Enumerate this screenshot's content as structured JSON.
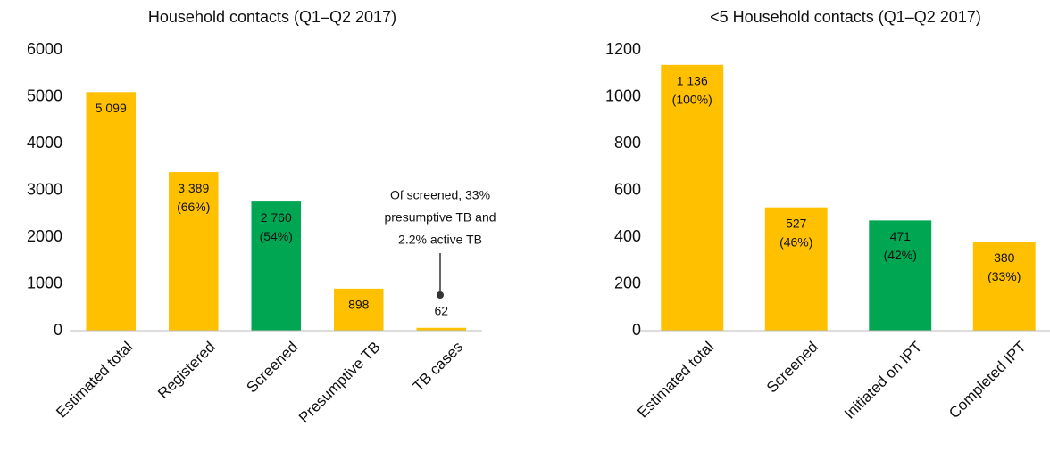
{
  "chart_data": [
    {
      "type": "bar",
      "title": "Household contacts (Q1–Q2 2017)",
      "categories": [
        "Estimated total",
        "Registered",
        "Screened",
        "Presumptive TB",
        "TB cases"
      ],
      "values": [
        5099,
        3389,
        2760,
        898,
        62
      ],
      "value_labels": [
        "5 099",
        "3 389",
        "2 760",
        "898",
        "62"
      ],
      "percent_labels": [
        null,
        "(66%)",
        "(54%)",
        null,
        null
      ],
      "colors": [
        "#FFC000",
        "#FFC000",
        "#00A651",
        "#FFC000",
        "#FFC000"
      ],
      "ylim": [
        0,
        6000
      ],
      "yticks": [
        0,
        1000,
        2000,
        3000,
        4000,
        5000,
        6000
      ],
      "grid": false,
      "annotation": [
        "Of screened, 33%",
        "presumptive TB and",
        "2.2% active TB"
      ]
    },
    {
      "type": "bar",
      "title": "<5 Household contacts (Q1–Q2 2017)",
      "categories": [
        "Estimated total",
        "Screened",
        "Initiated on IPT",
        "Completed IPT"
      ],
      "values": [
        1136,
        527,
        471,
        380
      ],
      "value_labels": [
        "1 136",
        "527",
        "471",
        "380"
      ],
      "percent_labels": [
        "(100%)",
        "(46%)",
        "(42%)",
        "(33%)"
      ],
      "colors": [
        "#FFC000",
        "#FFC000",
        "#00A651",
        "#FFC000"
      ],
      "ylim": [
        0,
        1200
      ],
      "yticks": [
        0,
        200,
        400,
        600,
        800,
        1000,
        1200
      ],
      "grid": false
    }
  ]
}
